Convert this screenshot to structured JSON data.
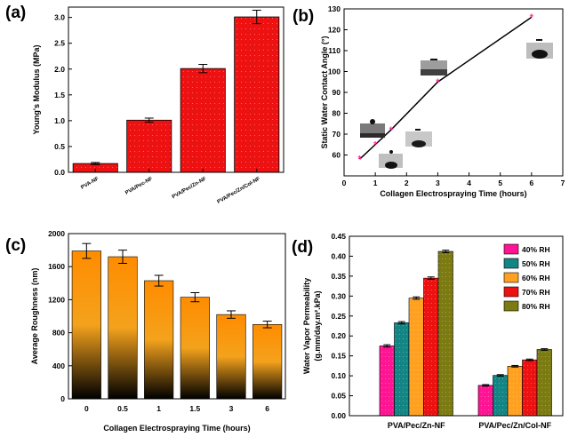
{
  "panels": {
    "a": "(a)",
    "b": "(b)",
    "c": "(c)",
    "d": "(d)"
  },
  "chart_data": [
    {
      "id": "a",
      "type": "bar",
      "ylabel": "Young's Modulus (MPa)",
      "xlabel": "",
      "categories": [
        "PVA-NF",
        "PVA/Pec-NF",
        "PVA/Pec/Zn-NF",
        "PVA/Pec/Zn/Col-NF"
      ],
      "values": [
        0.17,
        1.01,
        2.01,
        3.01
      ],
      "errors": [
        0.02,
        0.04,
        0.08,
        0.13
      ],
      "ylim": [
        0,
        3.2
      ],
      "yticks": [
        "0.0",
        "0.5",
        "1.0",
        "1.5",
        "2.0",
        "2.5",
        "3.0"
      ],
      "color": "#ee1111"
    },
    {
      "id": "b",
      "type": "line",
      "xlabel": "Collagen Electrospraying Time (hours)",
      "ylabel": "Static Water Contact Angle (°)",
      "x": [
        0.5,
        1,
        1.5,
        3,
        6
      ],
      "y": [
        58,
        65,
        72,
        95,
        126
      ],
      "xlim": [
        0,
        7
      ],
      "ylim": [
        50,
        130
      ],
      "xticks": [
        "0",
        "1",
        "2",
        "3",
        "4",
        "5",
        "6",
        "7"
      ],
      "yticks": [
        "60",
        "70",
        "80",
        "90",
        "100",
        "110",
        "120",
        "130"
      ],
      "marker_color": "#ff3399",
      "line_color": "#000000"
    },
    {
      "id": "c",
      "type": "bar",
      "xlabel": "Collagen Electrospraying Time (hours)",
      "ylabel": "Average Roughness (nm)",
      "categories": [
        "0",
        "0.5",
        "1",
        "1.5",
        "3",
        "6"
      ],
      "values": [
        1790,
        1720,
        1430,
        1230,
        1020,
        900
      ],
      "errors": [
        90,
        80,
        65,
        55,
        45,
        40
      ],
      "ylim": [
        0,
        2000
      ],
      "yticks": [
        "0",
        "400",
        "800",
        "1200",
        "1600",
        "2000"
      ],
      "gradient": [
        "#ff8c00",
        "#f4a21c",
        "#000000"
      ]
    },
    {
      "id": "d",
      "type": "bar",
      "ylabel_line1": "Water Vapor Permeability",
      "ylabel_line2": "(g.mm/day.m².kPa)",
      "categories": [
        "PVA/Pec/Zn-NF",
        "PVA/Pec/Zn/Col-NF"
      ],
      "series": [
        {
          "name": "40% RH",
          "values": [
            0.175,
            0.076
          ],
          "color": "#ff1493"
        },
        {
          "name": "50% RH",
          "values": [
            0.233,
            0.101
          ],
          "color": "#138585"
        },
        {
          "name": "60% RH",
          "values": [
            0.295,
            0.124
          ],
          "color": "#ffa020"
        },
        {
          "name": "70% RH",
          "values": [
            0.345,
            0.14
          ],
          "color": "#ee1111"
        },
        {
          "name": "80% RH",
          "values": [
            0.412,
            0.166
          ],
          "color": "#7b7b12"
        }
      ],
      "errors": [
        0.003,
        0.002
      ],
      "ylim": [
        0,
        0.45
      ],
      "yticks": [
        "0.00",
        "0.05",
        "0.10",
        "0.15",
        "0.20",
        "0.25",
        "0.30",
        "0.35",
        "0.40",
        "0.45"
      ],
      "legend_position": "top-right"
    }
  ]
}
